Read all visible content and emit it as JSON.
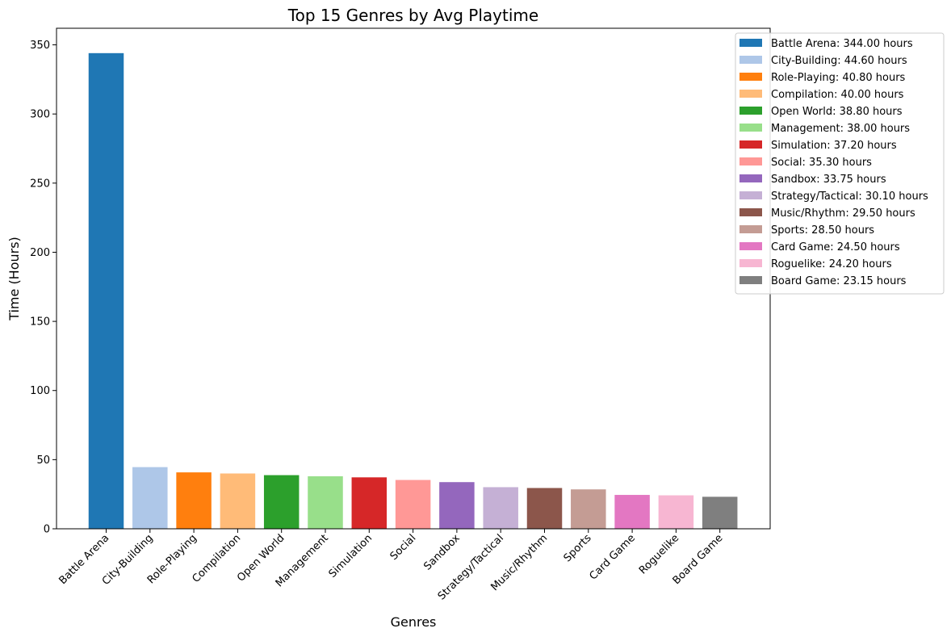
{
  "chart_data": {
    "type": "bar",
    "title": "Top 15 Genres by Avg Playtime",
    "xlabel": "Genres",
    "ylabel": "Time (Hours)",
    "ylim": [
      0,
      362
    ],
    "yticks": [
      0,
      50,
      100,
      150,
      200,
      250,
      300,
      350
    ],
    "categories": [
      "Battle Arena",
      "City-Building",
      "Role-Playing",
      "Compilation",
      "Open World",
      "Management",
      "Simulation",
      "Social",
      "Sandbox",
      "Strategy/Tactical",
      "Music/Rhythm",
      "Sports",
      "Card Game",
      "Roguelike",
      "Board Game"
    ],
    "values": [
      344.0,
      44.6,
      40.8,
      40.0,
      38.8,
      38.0,
      37.2,
      35.3,
      33.75,
      30.1,
      29.5,
      28.5,
      24.5,
      24.2,
      23.15
    ],
    "colors": [
      "#1f77b4",
      "#aec7e8",
      "#ff7f0e",
      "#ffbb78",
      "#2ca02c",
      "#98df8a",
      "#d62728",
      "#ff9896",
      "#9467bd",
      "#c5b0d5",
      "#8c564b",
      "#c49c94",
      "#e377c2",
      "#f7b6d2",
      "#7f7f7f"
    ],
    "legend": {
      "placement": "upper-right-outside",
      "entries": [
        "Battle Arena: 344.00 hours",
        "City-Building: 44.60 hours",
        "Role-Playing: 40.80 hours",
        "Compilation: 40.00 hours",
        "Open World: 38.80 hours",
        "Management: 38.00 hours",
        "Simulation: 37.20 hours",
        "Social: 35.30 hours",
        "Sandbox: 33.75 hours",
        "Strategy/Tactical: 30.10 hours",
        "Music/Rhythm: 29.50 hours",
        "Sports: 28.50 hours",
        "Card Game: 24.50 hours",
        "Roguelike: 24.20 hours",
        "Board Game: 23.15 hours"
      ]
    },
    "grid": false
  }
}
